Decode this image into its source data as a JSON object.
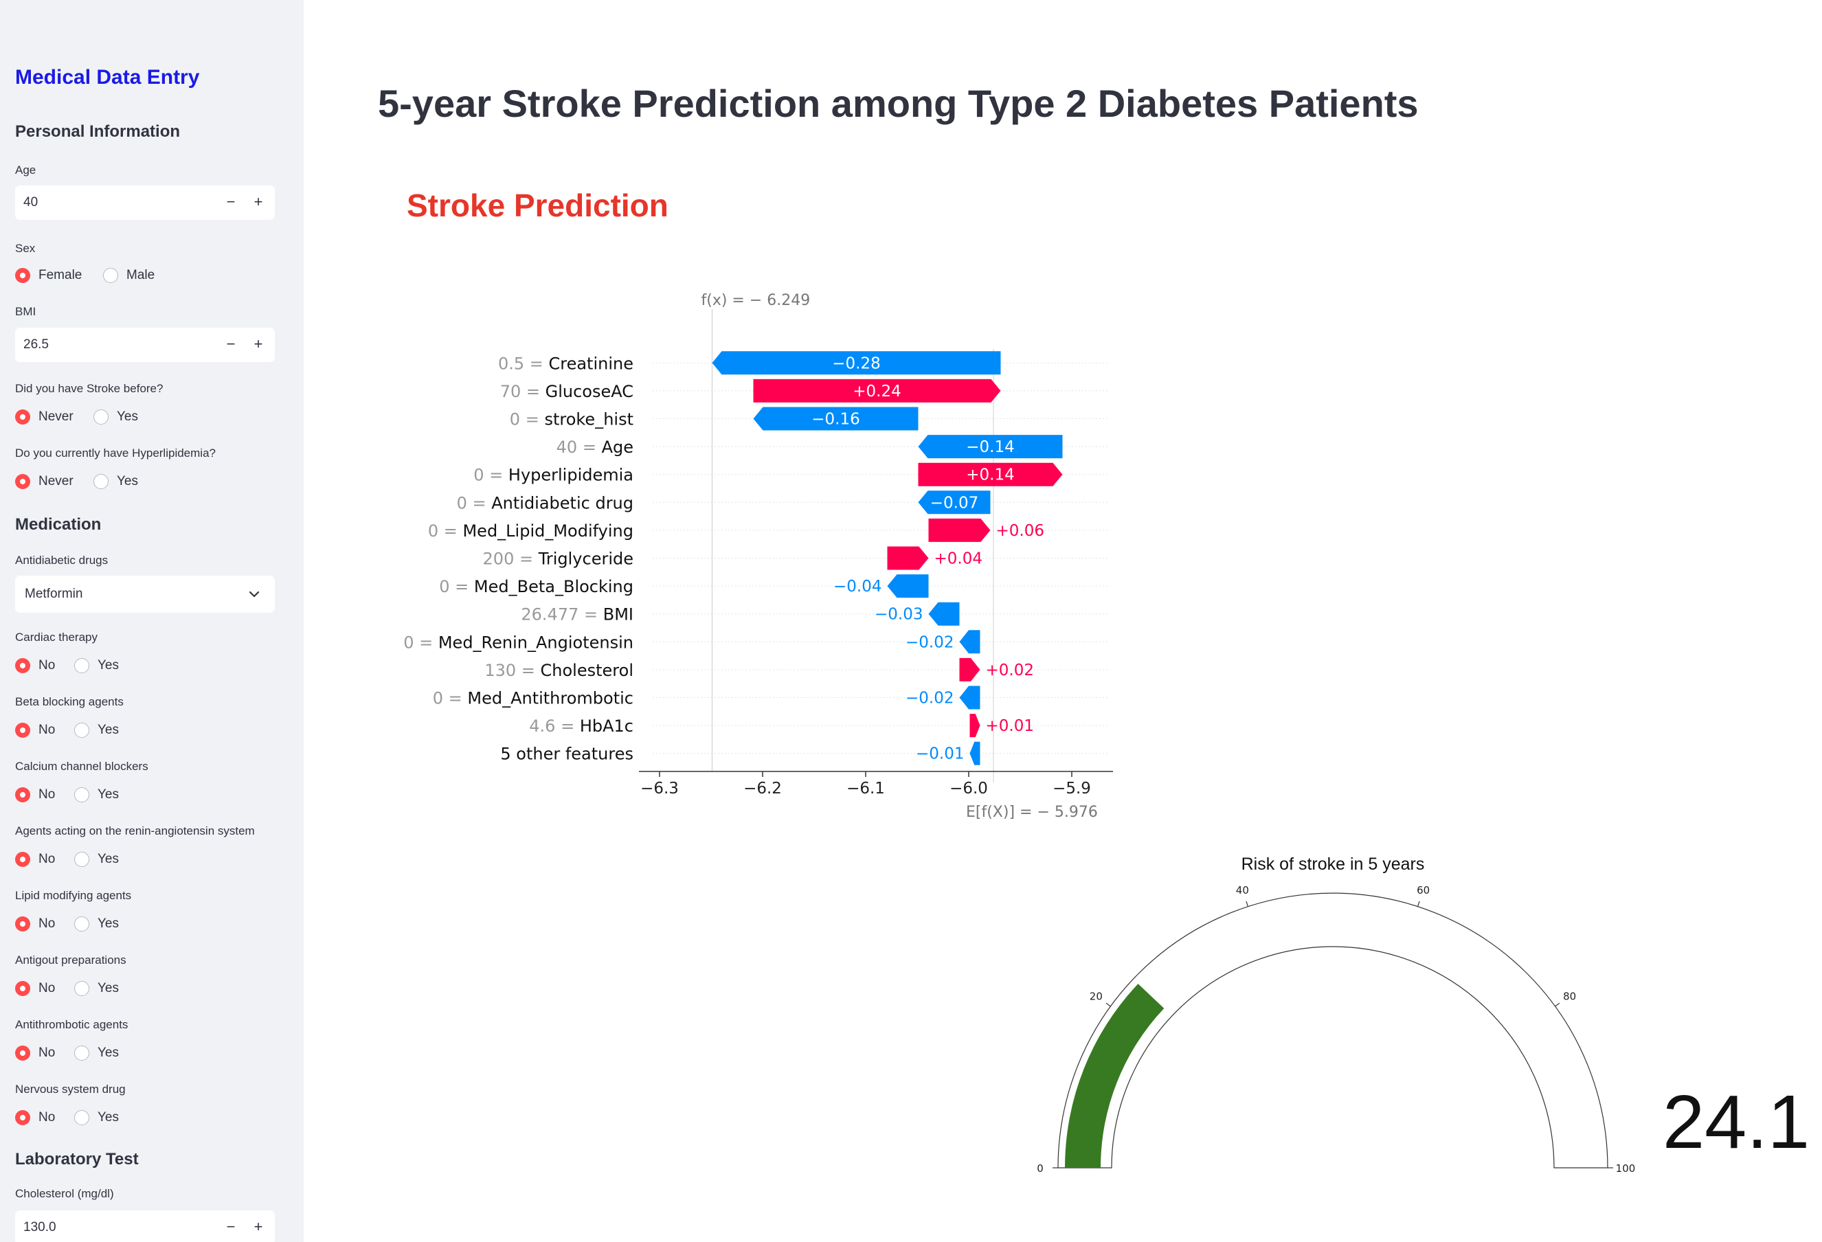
{
  "sidebar": {
    "title": "Medical Data Entry",
    "personal_info": "Personal Information",
    "age": {
      "label": "Age",
      "value": "40"
    },
    "sex": {
      "label": "Sex",
      "options": [
        "Female",
        "Male"
      ],
      "selected": 0
    },
    "bmi": {
      "label": "BMI",
      "value": "26.5"
    },
    "stroke_before": {
      "label": "Did you have Stroke before?",
      "options": [
        "Never",
        "Yes"
      ],
      "selected": 0
    },
    "hyperlipidemia": {
      "label": "Do you currently have Hyperlipidemia?",
      "options": [
        "Never",
        "Yes"
      ],
      "selected": 0
    },
    "medication": "Medication",
    "antidiabetic": {
      "label": "Antidiabetic drugs",
      "value": "Metformin"
    },
    "cardiac": {
      "label": "Cardiac therapy",
      "options": [
        "No",
        "Yes"
      ],
      "selected": 0
    },
    "beta": {
      "label": "Beta blocking agents",
      "options": [
        "No",
        "Yes"
      ],
      "selected": 0
    },
    "calcium": {
      "label": "Calcium channel blockers",
      "options": [
        "No",
        "Yes"
      ],
      "selected": 0
    },
    "renin": {
      "label": "Agents acting on the renin-angiotensin system",
      "options": [
        "No",
        "Yes"
      ],
      "selected": 0
    },
    "lipid": {
      "label": "Lipid modifying agents",
      "options": [
        "No",
        "Yes"
      ],
      "selected": 0
    },
    "antigout": {
      "label": "Antigout preparations",
      "options": [
        "No",
        "Yes"
      ],
      "selected": 0
    },
    "antithrombotic": {
      "label": "Antithrombotic agents",
      "options": [
        "No",
        "Yes"
      ],
      "selected": 0
    },
    "nervous": {
      "label": "Nervous system drug",
      "options": [
        "No",
        "Yes"
      ],
      "selected": 0
    },
    "lab": "Laboratory Test",
    "cholesterol": {
      "label": "Cholesterol (mg/dl)",
      "value": "130.0"
    }
  },
  "main": {
    "title": "5-year Stroke Prediction among Type 2 Diabetes Patients",
    "subtitle": "Stroke Prediction"
  },
  "colors": {
    "positive": "#ff0051",
    "negative": "#008bfb",
    "accent": "#ff4b4b",
    "gauge_fill": "#387a22"
  },
  "chart_data": [
    {
      "type": "waterfall",
      "fx_label": "f(x) = − 6.249",
      "efx_label": "E[f(X)] = − 5.976",
      "fx": -6.249,
      "base_value": -5.976,
      "xlim": [
        -6.32,
        -5.86
      ],
      "xticks": [
        -6.3,
        -6.2,
        -6.1,
        -6.0,
        -5.9
      ],
      "xtick_labels": [
        "−6.3",
        "−6.2",
        "−6.1",
        "−6.0",
        "−5.9"
      ],
      "features": [
        {
          "value": "0.5",
          "name": "Creatinine",
          "contribution": -0.28,
          "label": "−0.28"
        },
        {
          "value": "70",
          "name": "GlucoseAC",
          "contribution": 0.24,
          "label": "+0.24"
        },
        {
          "value": "0",
          "name": "stroke_hist",
          "contribution": -0.16,
          "label": "−0.16"
        },
        {
          "value": "40",
          "name": "Age",
          "contribution": -0.14,
          "label": "−0.14"
        },
        {
          "value": "0",
          "name": "Hyperlipidemia",
          "contribution": 0.14,
          "label": "+0.14"
        },
        {
          "value": "0",
          "name": "Antidiabetic drug",
          "contribution": -0.07,
          "label": "−0.07"
        },
        {
          "value": "0",
          "name": "Med_Lipid_Modifying",
          "contribution": 0.06,
          "label": "+0.06"
        },
        {
          "value": "200",
          "name": "Triglyceride",
          "contribution": 0.04,
          "label": "+0.04"
        },
        {
          "value": "0",
          "name": "Med_Beta_Blocking",
          "contribution": -0.04,
          "label": "−0.04"
        },
        {
          "value": "26.477",
          "name": "BMI",
          "contribution": -0.03,
          "label": "−0.03"
        },
        {
          "value": "0",
          "name": "Med_Renin_Angiotensin",
          "contribution": -0.02,
          "label": "−0.02"
        },
        {
          "value": "130",
          "name": "Cholesterol",
          "contribution": 0.02,
          "label": "+0.02"
        },
        {
          "value": "0",
          "name": "Med_Antithrombotic",
          "contribution": -0.02,
          "label": "−0.02"
        },
        {
          "value": "4.6",
          "name": "HbA1c",
          "contribution": 0.01,
          "label": "+0.01"
        },
        {
          "value": "",
          "name": "5 other features",
          "contribution": -0.01,
          "label": "−0.01"
        }
      ]
    },
    {
      "type": "gauge",
      "title": "Risk of stroke in 5 years",
      "value": 24.1,
      "value_label": "24.1",
      "range": [
        0,
        100
      ],
      "ticks": [
        0,
        20,
        40,
        60,
        80,
        100
      ],
      "tick_labels": [
        "0",
        "20",
        "40",
        "60",
        "80",
        "100"
      ]
    }
  ]
}
